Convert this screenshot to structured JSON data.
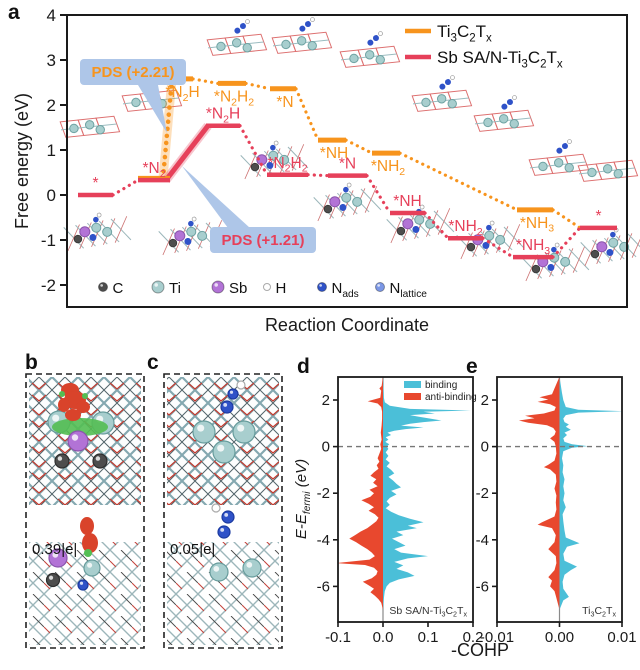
{
  "colors": {
    "orange": "#F7941D",
    "red": "#E6405A",
    "axis": "#1a1a1a",
    "pds_box": "#AEC6E8",
    "binding": "#4BBFD8",
    "antibinding": "#E8482E",
    "atom_C": "#4D4D4D",
    "atom_Ti": "#A8CECE",
    "atom_Sb": "#B273D6",
    "atom_H": "#FFFFFF",
    "atom_Nads": "#2F52C8",
    "atom_Nlattice": "#7B97E6"
  },
  "panel_letters": {
    "a": "a",
    "b": "b",
    "c": "c",
    "d": "d",
    "e": "e"
  },
  "panel_b": {
    "charge_label": "0.39|e|"
  },
  "panel_c": {
    "charge_label": "0.05|e|"
  },
  "shared_xlabel": "-COHP",
  "chart_data": [
    {
      "id": "free_energy_diagram",
      "type": "line",
      "title": "",
      "xlabel": "Reaction Coordinate",
      "ylabel": "Free energy (eV)",
      "ylim": [
        -2,
        4
      ],
      "yticks": [
        "4",
        "3",
        "2",
        "1",
        "0",
        "-1",
        "-2"
      ],
      "grid": false,
      "legend_position": "top-right",
      "states": [
        "*",
        "*N~2~",
        "*N~2~H",
        "*N~2~H~2~",
        "*N",
        "*NH",
        "*NH~2~",
        "*NH~3~",
        "*"
      ],
      "series": [
        {
          "name": "Ti~3~C~2~T~x~",
          "color": "#F7941D",
          "values": [
            0.0,
            0.37,
            2.58,
            2.48,
            2.36,
            1.22,
            0.93,
            -0.33,
            -0.73
          ],
          "pds_annotation": "PDS (+2.21)"
        },
        {
          "name": "Sb SA/N-Ti~3~C~2~T~x~",
          "color": "#E6405A",
          "values": [
            0.0,
            0.33,
            1.54,
            0.45,
            0.43,
            -0.4,
            -0.96,
            -1.38,
            -0.73
          ],
          "pds_annotation": "PDS (+1.21)"
        }
      ],
      "atom_legend": [
        {
          "label": "C",
          "color": "#4D4D4D",
          "r": 4.5
        },
        {
          "label": "Ti",
          "color": "#A8CECE",
          "r": 6
        },
        {
          "label": "Sb",
          "color": "#B273D6",
          "r": 6
        },
        {
          "label": "H",
          "color": "#FFFFFF",
          "r": 3.5
        },
        {
          "label": "N~ads~",
          "color": "#2F52C8",
          "r": 4.5
        },
        {
          "label": "N~lattice~",
          "color": "#7B97E6",
          "r": 4.5
        }
      ]
    },
    {
      "id": "cohp_sb",
      "type": "area",
      "inner_label": "Sb SA/N-Ti~3~C~2~T~x~",
      "xlabel": "-COHP",
      "ylabel": "E-E~fermi~ (eV)",
      "xlim": [
        -0.1,
        0.2
      ],
      "xticks": [
        "-0.1",
        "0.0",
        "0.1",
        "0.2"
      ],
      "ylim": [
        -7.5,
        3.0
      ],
      "yticks": [
        "2",
        "0",
        "-2",
        "-4",
        "-6"
      ],
      "legend": [
        {
          "label": "binding",
          "color": "#4BBFD8"
        },
        {
          "label": "anti-binding",
          "color": "#E8482E"
        }
      ],
      "binding": [
        [
          3.0,
          0
        ],
        [
          2.1,
          0.002
        ],
        [
          1.9,
          0.004
        ],
        [
          1.75,
          0.015
        ],
        [
          1.62,
          0.06
        ],
        [
          1.55,
          0.195
        ],
        [
          1.5,
          0.09
        ],
        [
          1.42,
          0.115
        ],
        [
          1.35,
          0.06
        ],
        [
          1.28,
          0.08
        ],
        [
          1.2,
          0.105
        ],
        [
          1.12,
          0.13
        ],
        [
          1.05,
          0.09
        ],
        [
          0.98,
          0.06
        ],
        [
          0.9,
          0.04
        ],
        [
          0.82,
          0.09
        ],
        [
          0.75,
          0.05
        ],
        [
          0.68,
          0.025
        ],
        [
          0.6,
          0.01
        ],
        [
          0.5,
          0.018
        ],
        [
          0.4,
          0.006
        ],
        [
          0.3,
          0.012
        ],
        [
          0.2,
          0.005
        ],
        [
          0.1,
          0.014
        ],
        [
          0.0,
          0.008
        ],
        [
          -0.1,
          0.012
        ],
        [
          -0.25,
          0.006
        ],
        [
          -0.4,
          0.012
        ],
        [
          -0.55,
          0.006
        ],
        [
          -0.7,
          0.015
        ],
        [
          -0.85,
          0.008
        ],
        [
          -1.0,
          0.018
        ],
        [
          -1.15,
          0.025
        ],
        [
          -1.3,
          0.012
        ],
        [
          -1.45,
          0.022
        ],
        [
          -1.6,
          0.03
        ],
        [
          -1.75,
          0.04
        ],
        [
          -1.9,
          0.018
        ],
        [
          -2.05,
          0.03
        ],
        [
          -2.2,
          0.015
        ],
        [
          -2.35,
          0.008
        ],
        [
          -2.5,
          0.015
        ],
        [
          -2.65,
          0.006
        ],
        [
          -2.8,
          0.018
        ],
        [
          -2.95,
          0.035
        ],
        [
          -3.1,
          0.06
        ],
        [
          -3.25,
          0.09
        ],
        [
          -3.4,
          0.055
        ],
        [
          -3.5,
          0.075
        ],
        [
          -3.65,
          0.03
        ],
        [
          -3.8,
          0.045
        ],
        [
          -3.95,
          0.02
        ],
        [
          -4.1,
          0.035
        ],
        [
          -4.25,
          0.05
        ],
        [
          -4.4,
          0.025
        ],
        [
          -4.55,
          0.04
        ],
        [
          -4.7,
          0.1
        ],
        [
          -4.8,
          0.055
        ],
        [
          -4.95,
          0.025
        ],
        [
          -5.1,
          0.045
        ],
        [
          -5.25,
          0.03
        ],
        [
          -5.4,
          0.055
        ],
        [
          -5.55,
          0.07
        ],
        [
          -5.7,
          0.035
        ],
        [
          -5.85,
          0.015
        ],
        [
          -6.0,
          0.008
        ],
        [
          -6.2,
          0.004
        ],
        [
          -6.5,
          0.002
        ],
        [
          -7.0,
          0
        ]
      ],
      "antibinding": [
        [
          3.0,
          0
        ],
        [
          2.6,
          0.003
        ],
        [
          2.5,
          0.008
        ],
        [
          2.4,
          0.004
        ],
        [
          2.1,
          0.006
        ],
        [
          1.95,
          0.034
        ],
        [
          1.85,
          0.012
        ],
        [
          1.7,
          0.004
        ],
        [
          1.5,
          0.002
        ],
        [
          1.2,
          0.002
        ],
        [
          0.9,
          0.003
        ],
        [
          0.6,
          0.005
        ],
        [
          0.3,
          0.003
        ],
        [
          0.1,
          0.006
        ],
        [
          -0.1,
          0.004
        ],
        [
          -0.3,
          0.008
        ],
        [
          -0.5,
          0.012
        ],
        [
          -0.65,
          0.008
        ],
        [
          -0.8,
          0.014
        ],
        [
          -0.95,
          0.01
        ],
        [
          -1.1,
          0.02
        ],
        [
          -1.25,
          0.028
        ],
        [
          -1.4,
          0.015
        ],
        [
          -1.55,
          0.022
        ],
        [
          -1.7,
          0.012
        ],
        [
          -1.85,
          0.03
        ],
        [
          -2.0,
          0.02
        ],
        [
          -2.15,
          0.028
        ],
        [
          -2.3,
          0.048
        ],
        [
          -2.45,
          0.032
        ],
        [
          -2.6,
          0.02
        ],
        [
          -2.75,
          0.032
        ],
        [
          -2.9,
          0.018
        ],
        [
          -3.05,
          0.01
        ],
        [
          -3.2,
          0.015
        ],
        [
          -3.35,
          0.025
        ],
        [
          -3.5,
          0.035
        ],
        [
          -3.65,
          0.05
        ],
        [
          -3.8,
          0.062
        ],
        [
          -3.95,
          0.075
        ],
        [
          -4.1,
          0.06
        ],
        [
          -4.25,
          0.048
        ],
        [
          -4.4,
          0.035
        ],
        [
          -4.55,
          0.025
        ],
        [
          -4.7,
          0.018
        ],
        [
          -4.85,
          0.03
        ],
        [
          -5.0,
          0.105
        ],
        [
          -5.08,
          0.04
        ],
        [
          -5.2,
          0.02
        ],
        [
          -5.35,
          0.012
        ],
        [
          -5.5,
          0.015
        ],
        [
          -5.65,
          0.025
        ],
        [
          -5.8,
          0.045
        ],
        [
          -5.95,
          0.032
        ],
        [
          -6.1,
          0.02
        ],
        [
          -6.25,
          0.028
        ],
        [
          -6.4,
          0.018
        ],
        [
          -6.55,
          0.01
        ],
        [
          -6.7,
          0.004
        ],
        [
          -7.0,
          0
        ]
      ]
    },
    {
      "id": "cohp_ti",
      "type": "area",
      "inner_label": "Ti~3~C~2~T~x~",
      "xlabel": "-COHP",
      "ylabel": "E-E~fermi~ (eV)",
      "xlim": [
        -0.01,
        0.01
      ],
      "xticks": [
        "-0.01",
        "0.00",
        "0.01"
      ],
      "ylim": [
        -7.5,
        3.0
      ],
      "yticks": [
        "2",
        "0",
        "-2",
        "-4",
        "-6"
      ],
      "binding": [
        [
          3.0,
          0
        ],
        [
          2.3,
          0.0004
        ],
        [
          2.0,
          0.0006
        ],
        [
          1.7,
          0.001
        ],
        [
          1.58,
          0.003
        ],
        [
          1.52,
          0.0102
        ],
        [
          1.46,
          0.003
        ],
        [
          1.35,
          0.001
        ],
        [
          1.2,
          0.0006
        ],
        [
          1.05,
          0.0008
        ],
        [
          0.95,
          0.0015
        ],
        [
          0.85,
          0.001
        ],
        [
          0.72,
          0.0018
        ],
        [
          0.6,
          0.0008
        ],
        [
          0.5,
          0.0012
        ],
        [
          0.35,
          0.0006
        ],
        [
          0.2,
          0.0008
        ],
        [
          0.1,
          0.002
        ],
        [
          0.02,
          0.0045
        ],
        [
          -0.05,
          0.002
        ],
        [
          -0.2,
          0.0006
        ],
        [
          -0.5,
          0.0004
        ],
        [
          -0.8,
          0.0006
        ],
        [
          -1.1,
          0.0005
        ],
        [
          -1.4,
          0.0008
        ],
        [
          -1.7,
          0.0006
        ],
        [
          -2.0,
          0.0008
        ],
        [
          -2.3,
          0.0006
        ],
        [
          -2.6,
          0.001
        ],
        [
          -2.9,
          0.0005
        ],
        [
          -3.2,
          0.0006
        ],
        [
          -3.6,
          0.0008
        ],
        [
          -3.9,
          0.001
        ],
        [
          -4.15,
          0.0032
        ],
        [
          -4.3,
          0.0012
        ],
        [
          -4.6,
          0.0006
        ],
        [
          -4.9,
          0.0008
        ],
        [
          -5.15,
          0.0028
        ],
        [
          -5.3,
          0.0018
        ],
        [
          -5.5,
          0.0008
        ],
        [
          -5.8,
          0.0005
        ],
        [
          -6.1,
          0.0006
        ],
        [
          -6.45,
          0.0015
        ],
        [
          -6.6,
          0.0006
        ],
        [
          -7.0,
          0
        ]
      ],
      "antibinding": [
        [
          3.0,
          0
        ],
        [
          2.25,
          0.0012
        ],
        [
          2.12,
          0.0032
        ],
        [
          2.02,
          0.0018
        ],
        [
          1.92,
          0.0035
        ],
        [
          1.82,
          0.0015
        ],
        [
          1.7,
          0.0006
        ],
        [
          1.55,
          0.0008
        ],
        [
          1.42,
          0.0025
        ],
        [
          1.32,
          0.0055
        ],
        [
          1.22,
          0.004
        ],
        [
          1.12,
          0.0065
        ],
        [
          1.02,
          0.005
        ],
        [
          0.92,
          0.002
        ],
        [
          0.8,
          0.001
        ],
        [
          0.65,
          0.0006
        ],
        [
          0.5,
          0.0008
        ],
        [
          0.35,
          0.0015
        ],
        [
          0.2,
          0.0008
        ],
        [
          0.0,
          0.0006
        ],
        [
          -0.3,
          0.0005
        ],
        [
          -0.6,
          0.0008
        ],
        [
          -0.78,
          0.0018
        ],
        [
          -0.88,
          0.0025
        ],
        [
          -0.98,
          0.0015
        ],
        [
          -1.2,
          0.0006
        ],
        [
          -1.5,
          0.0005
        ],
        [
          -1.8,
          0.0008
        ],
        [
          -2.1,
          0.0005
        ],
        [
          -2.4,
          0.0006
        ],
        [
          -2.7,
          0.0005
        ],
        [
          -3.0,
          0.0008
        ],
        [
          -3.25,
          0.0028
        ],
        [
          -3.35,
          0.0035
        ],
        [
          -3.5,
          0.0012
        ],
        [
          -3.8,
          0.0006
        ],
        [
          -4.1,
          0.0008
        ],
        [
          -4.4,
          0.0018
        ],
        [
          -4.7,
          0.0006
        ],
        [
          -5.0,
          0.0005
        ],
        [
          -5.3,
          0.0008
        ],
        [
          -5.6,
          0.0018
        ],
        [
          -5.75,
          0.0012
        ],
        [
          -6.0,
          0.0015
        ],
        [
          -6.2,
          0.0008
        ],
        [
          -6.4,
          0.0006
        ],
        [
          -7.0,
          0
        ]
      ]
    }
  ]
}
